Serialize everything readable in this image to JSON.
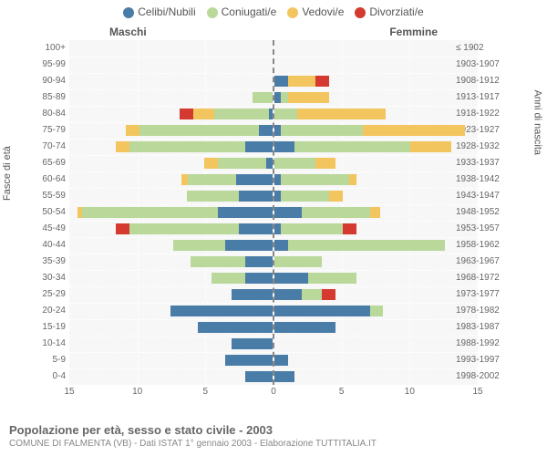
{
  "legend": {
    "items": [
      {
        "label": "Celibi/Nubili",
        "color": "#4a7ca8"
      },
      {
        "label": "Coniugati/e",
        "color": "#b9d89a"
      },
      {
        "label": "Vedovi/e",
        "color": "#f3c55f"
      },
      {
        "label": "Divorziati/e",
        "color": "#d43a2f"
      }
    ]
  },
  "headers": {
    "male": "Maschi",
    "female": "Femmine"
  },
  "axis": {
    "left_label": "Fasce di età",
    "right_label": "Anni di nascita",
    "xmax": 15,
    "xticks": [
      15,
      10,
      5,
      0,
      5,
      10,
      15
    ]
  },
  "footer": {
    "title": "Popolazione per età, sesso e stato civile - 2003",
    "sub": "COMUNE DI FALMENTA (VB) - Dati ISTAT 1° gennaio 2003 - Elaborazione TUTTITALIA.IT"
  },
  "colors": {
    "celibi": "#4a7ca8",
    "coniugati": "#b9d89a",
    "vedovi": "#f3c55f",
    "divorziati": "#d43a2f",
    "plot_bg": "#f7f7f7",
    "grid": "#ffffff"
  },
  "rows": [
    {
      "age": "100+",
      "birth": "≤ 1902",
      "m": [
        0,
        0,
        0,
        0
      ],
      "f": [
        0,
        0,
        0,
        0
      ]
    },
    {
      "age": "95-99",
      "birth": "1903-1907",
      "m": [
        0,
        0,
        0,
        0
      ],
      "f": [
        0,
        0,
        0,
        0
      ]
    },
    {
      "age": "90-94",
      "birth": "1908-1912",
      "m": [
        0,
        0,
        0,
        0
      ],
      "f": [
        1.0,
        0,
        2.0,
        1.0
      ]
    },
    {
      "age": "85-89",
      "birth": "1913-1917",
      "m": [
        0,
        1.5,
        0,
        0
      ],
      "f": [
        0.5,
        0.5,
        3.0,
        0
      ]
    },
    {
      "age": "80-84",
      "birth": "1918-1922",
      "m": [
        0.3,
        4.0,
        1.5,
        1.0
      ],
      "f": [
        0,
        1.7,
        6.5,
        0
      ]
    },
    {
      "age": "75-79",
      "birth": "1923-1927",
      "m": [
        1.0,
        8.8,
        1.0,
        0
      ],
      "f": [
        0.5,
        6.0,
        7.5,
        0
      ]
    },
    {
      "age": "70-74",
      "birth": "1928-1932",
      "m": [
        2.0,
        8.5,
        1.0,
        0
      ],
      "f": [
        1.5,
        8.5,
        3.0,
        0
      ]
    },
    {
      "age": "65-69",
      "birth": "1933-1937",
      "m": [
        0.5,
        3.5,
        1.0,
        0
      ],
      "f": [
        0,
        3.0,
        1.5,
        0
      ]
    },
    {
      "age": "60-64",
      "birth": "1938-1942",
      "m": [
        2.7,
        3.5,
        0.5,
        0
      ],
      "f": [
        0.5,
        5.0,
        0.5,
        0
      ]
    },
    {
      "age": "55-59",
      "birth": "1943-1947",
      "m": [
        2.5,
        3.8,
        0,
        0
      ],
      "f": [
        0.5,
        3.5,
        1.0,
        0
      ]
    },
    {
      "age": "50-54",
      "birth": "1948-1952",
      "m": [
        4.0,
        10.0,
        0.3,
        0
      ],
      "f": [
        2.0,
        5.0,
        0.8,
        0
      ]
    },
    {
      "age": "45-49",
      "birth": "1953-1957",
      "m": [
        2.5,
        8.0,
        0,
        1.0
      ],
      "f": [
        0.5,
        4.5,
        0,
        1.0
      ]
    },
    {
      "age": "40-44",
      "birth": "1958-1962",
      "m": [
        3.5,
        3.8,
        0,
        0
      ],
      "f": [
        1.0,
        11.5,
        0,
        0
      ]
    },
    {
      "age": "35-39",
      "birth": "1963-1967",
      "m": [
        2.0,
        4.0,
        0,
        0
      ],
      "f": [
        0,
        3.5,
        0,
        0
      ]
    },
    {
      "age": "30-34",
      "birth": "1968-1972",
      "m": [
        2.0,
        2.5,
        0,
        0
      ],
      "f": [
        2.5,
        3.5,
        0,
        0
      ]
    },
    {
      "age": "25-29",
      "birth": "1973-1977",
      "m": [
        3.0,
        0,
        0,
        0
      ],
      "f": [
        2.0,
        1.5,
        0,
        1.0
      ]
    },
    {
      "age": "20-24",
      "birth": "1978-1982",
      "m": [
        7.5,
        0,
        0,
        0
      ],
      "f": [
        7.0,
        1.0,
        0,
        0
      ]
    },
    {
      "age": "15-19",
      "birth": "1983-1987",
      "m": [
        5.5,
        0,
        0,
        0
      ],
      "f": [
        4.5,
        0,
        0,
        0
      ]
    },
    {
      "age": "10-14",
      "birth": "1988-1992",
      "m": [
        3.0,
        0,
        0,
        0
      ],
      "f": [
        0,
        0,
        0,
        0
      ]
    },
    {
      "age": "5-9",
      "birth": "1993-1997",
      "m": [
        3.5,
        0,
        0,
        0
      ],
      "f": [
        1.0,
        0,
        0,
        0
      ]
    },
    {
      "age": "0-4",
      "birth": "1998-2002",
      "m": [
        2.0,
        0,
        0,
        0
      ],
      "f": [
        1.5,
        0,
        0,
        0
      ]
    }
  ]
}
